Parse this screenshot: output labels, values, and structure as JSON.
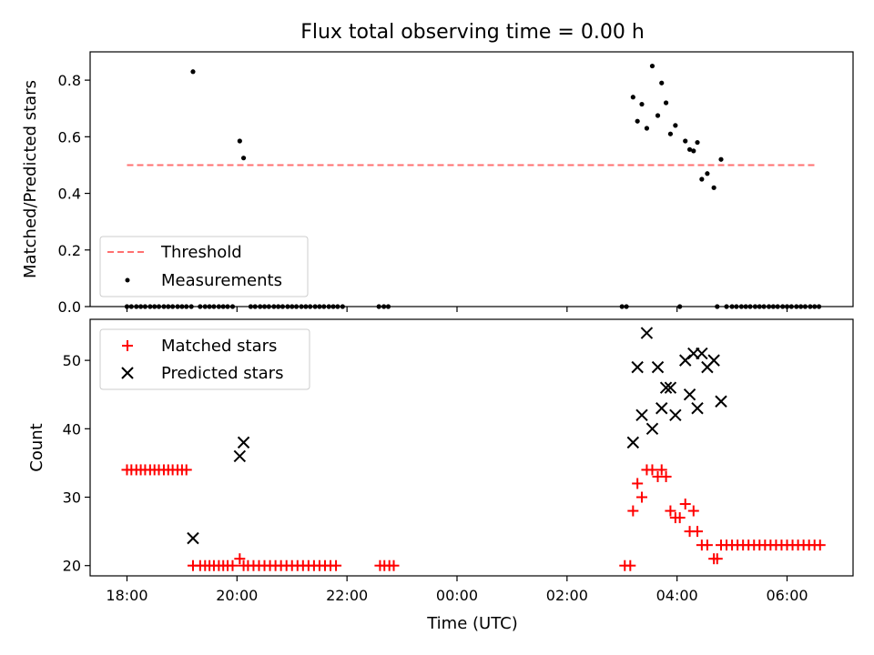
{
  "figure_title": "Flux total observing time = 0.00 h",
  "colors": {
    "threshold": "#ff7070",
    "measurements": "#000000",
    "matched": "#ff0000",
    "predicted": "#000000"
  },
  "chart_data": [
    {
      "type": "scatter",
      "title": "Flux total observing time = 0.00 h",
      "xlabel": "",
      "ylabel": "Matched/Predicted stars",
      "xticks": [
        "18:00",
        "20:00",
        "22:00",
        "00:00",
        "02:00",
        "04:00",
        "06:00"
      ],
      "xtick_values": [
        0,
        2,
        4,
        6,
        8,
        10,
        12
      ],
      "yticks": [
        "0.0",
        "0.2",
        "0.4",
        "0.6",
        "0.8"
      ],
      "ylim": [
        0,
        0.9
      ],
      "xlim": [
        -0.67,
        13.2
      ],
      "legend": {
        "placement": "lower-left",
        "entries": [
          "Threshold",
          "Measurements"
        ]
      },
      "threshold": {
        "name": "Threshold",
        "x": [
          0,
          12.5
        ],
        "y": 0.5
      },
      "measurements": {
        "name": "Measurements",
        "points": [
          [
            0.0,
            0
          ],
          [
            0.08,
            0
          ],
          [
            0.17,
            0
          ],
          [
            0.25,
            0
          ],
          [
            0.33,
            0
          ],
          [
            0.42,
            0
          ],
          [
            0.5,
            0
          ],
          [
            0.58,
            0
          ],
          [
            0.67,
            0
          ],
          [
            0.75,
            0
          ],
          [
            0.83,
            0
          ],
          [
            0.92,
            0
          ],
          [
            1.0,
            0
          ],
          [
            1.08,
            0
          ],
          [
            1.17,
            0
          ],
          [
            1.2,
            0.83
          ],
          [
            1.33,
            0
          ],
          [
            1.42,
            0
          ],
          [
            1.5,
            0
          ],
          [
            1.58,
            0
          ],
          [
            1.67,
            0
          ],
          [
            1.75,
            0
          ],
          [
            1.83,
            0
          ],
          [
            1.92,
            0
          ],
          [
            2.05,
            0.585
          ],
          [
            2.12,
            0.525
          ],
          [
            2.25,
            0
          ],
          [
            2.33,
            0
          ],
          [
            2.42,
            0
          ],
          [
            2.5,
            0
          ],
          [
            2.58,
            0
          ],
          [
            2.67,
            0
          ],
          [
            2.75,
            0
          ],
          [
            2.83,
            0
          ],
          [
            2.92,
            0
          ],
          [
            3.0,
            0
          ],
          [
            3.08,
            0
          ],
          [
            3.17,
            0
          ],
          [
            3.25,
            0
          ],
          [
            3.33,
            0
          ],
          [
            3.42,
            0
          ],
          [
            3.5,
            0
          ],
          [
            3.58,
            0
          ],
          [
            3.67,
            0
          ],
          [
            3.75,
            0
          ],
          [
            3.83,
            0
          ],
          [
            3.92,
            0
          ],
          [
            4.58,
            0
          ],
          [
            4.67,
            0
          ],
          [
            4.75,
            0
          ],
          [
            9.0,
            0
          ],
          [
            9.08,
            0
          ],
          [
            9.2,
            0.74
          ],
          [
            9.28,
            0.655
          ],
          [
            9.36,
            0.715
          ],
          [
            9.45,
            0.63
          ],
          [
            9.55,
            0.85
          ],
          [
            9.65,
            0.675
          ],
          [
            9.72,
            0.79
          ],
          [
            9.8,
            0.72
          ],
          [
            9.88,
            0.61
          ],
          [
            9.97,
            0.64
          ],
          [
            10.05,
            0
          ],
          [
            10.15,
            0.585
          ],
          [
            10.23,
            0.555
          ],
          [
            10.3,
            0.55
          ],
          [
            10.37,
            0.58
          ],
          [
            10.45,
            0.45
          ],
          [
            10.55,
            0.47
          ],
          [
            10.67,
            0.42
          ],
          [
            10.73,
            0
          ],
          [
            10.8,
            0.52
          ],
          [
            10.9,
            0
          ],
          [
            11.0,
            0
          ],
          [
            11.08,
            0
          ],
          [
            11.17,
            0
          ],
          [
            11.25,
            0
          ],
          [
            11.33,
            0
          ],
          [
            11.42,
            0
          ],
          [
            11.5,
            0
          ],
          [
            11.58,
            0
          ],
          [
            11.67,
            0
          ],
          [
            11.75,
            0
          ],
          [
            11.83,
            0
          ],
          [
            11.92,
            0
          ],
          [
            12.0,
            0
          ],
          [
            12.08,
            0
          ],
          [
            12.17,
            0
          ],
          [
            12.25,
            0
          ],
          [
            12.33,
            0
          ],
          [
            12.42,
            0
          ],
          [
            12.5,
            0
          ],
          [
            12.58,
            0
          ]
        ]
      }
    },
    {
      "type": "scatter",
      "title": "",
      "xlabel": "Time (UTC)",
      "ylabel": "Count",
      "xticks": [
        "18:00",
        "20:00",
        "22:00",
        "00:00",
        "02:00",
        "04:00",
        "06:00"
      ],
      "xtick_values": [
        0,
        2,
        4,
        6,
        8,
        10,
        12
      ],
      "yticks": [
        "20",
        "30",
        "40",
        "50"
      ],
      "ylim": [
        18.5,
        56
      ],
      "xlim": [
        -0.67,
        13.2
      ],
      "legend": {
        "placement": "upper-left",
        "entries": [
          "Matched stars",
          "Predicted stars"
        ]
      },
      "series": [
        {
          "name": "Matched stars",
          "marker": "plus",
          "points": [
            [
              0.0,
              34
            ],
            [
              0.08,
              34
            ],
            [
              0.17,
              34
            ],
            [
              0.25,
              34
            ],
            [
              0.33,
              34
            ],
            [
              0.42,
              34
            ],
            [
              0.5,
              34
            ],
            [
              0.58,
              34
            ],
            [
              0.67,
              34
            ],
            [
              0.75,
              34
            ],
            [
              0.83,
              34
            ],
            [
              0.92,
              34
            ],
            [
              1.0,
              34
            ],
            [
              1.08,
              34
            ],
            [
              1.2,
              20
            ],
            [
              1.33,
              20
            ],
            [
              1.42,
              20
            ],
            [
              1.5,
              20
            ],
            [
              1.58,
              20
            ],
            [
              1.67,
              20
            ],
            [
              1.75,
              20
            ],
            [
              1.83,
              20
            ],
            [
              1.92,
              20
            ],
            [
              2.05,
              21
            ],
            [
              2.12,
              20
            ],
            [
              2.2,
              20
            ],
            [
              2.3,
              20
            ],
            [
              2.4,
              20
            ],
            [
              2.5,
              20
            ],
            [
              2.6,
              20
            ],
            [
              2.7,
              20
            ],
            [
              2.8,
              20
            ],
            [
              2.9,
              20
            ],
            [
              3.0,
              20
            ],
            [
              3.1,
              20
            ],
            [
              3.2,
              20
            ],
            [
              3.3,
              20
            ],
            [
              3.4,
              20
            ],
            [
              3.5,
              20
            ],
            [
              3.6,
              20
            ],
            [
              3.7,
              20
            ],
            [
              3.8,
              20
            ],
            [
              4.6,
              20
            ],
            [
              4.68,
              20
            ],
            [
              4.77,
              20
            ],
            [
              4.85,
              20
            ],
            [
              9.05,
              20
            ],
            [
              9.15,
              20
            ],
            [
              9.2,
              28
            ],
            [
              9.28,
              32
            ],
            [
              9.36,
              30
            ],
            [
              9.45,
              34
            ],
            [
              9.55,
              34
            ],
            [
              9.65,
              33
            ],
            [
              9.72,
              34
            ],
            [
              9.8,
              33
            ],
            [
              9.88,
              28
            ],
            [
              9.97,
              27
            ],
            [
              10.05,
              27
            ],
            [
              10.15,
              29
            ],
            [
              10.23,
              25
            ],
            [
              10.3,
              28
            ],
            [
              10.37,
              25
            ],
            [
              10.45,
              23
            ],
            [
              10.55,
              23
            ],
            [
              10.67,
              21
            ],
            [
              10.73,
              21
            ],
            [
              10.8,
              23
            ],
            [
              10.9,
              23
            ],
            [
              11.0,
              23
            ],
            [
              11.1,
              23
            ],
            [
              11.2,
              23
            ],
            [
              11.3,
              23
            ],
            [
              11.4,
              23
            ],
            [
              11.5,
              23
            ],
            [
              11.6,
              23
            ],
            [
              11.7,
              23
            ],
            [
              11.8,
              23
            ],
            [
              11.9,
              23
            ],
            [
              12.0,
              23
            ],
            [
              12.1,
              23
            ],
            [
              12.2,
              23
            ],
            [
              12.3,
              23
            ],
            [
              12.4,
              23
            ],
            [
              12.5,
              23
            ],
            [
              12.6,
              23
            ]
          ]
        },
        {
          "name": "Predicted stars",
          "marker": "x",
          "points": [
            [
              1.2,
              24
            ],
            [
              2.05,
              36
            ],
            [
              2.12,
              38
            ],
            [
              9.2,
              38
            ],
            [
              9.28,
              49
            ],
            [
              9.36,
              42
            ],
            [
              9.45,
              54
            ],
            [
              9.55,
              40
            ],
            [
              9.65,
              49
            ],
            [
              9.72,
              43
            ],
            [
              9.8,
              46
            ],
            [
              9.88,
              46
            ],
            [
              9.97,
              42
            ],
            [
              10.15,
              50
            ],
            [
              10.23,
              45
            ],
            [
              10.3,
              51
            ],
            [
              10.37,
              43
            ],
            [
              10.45,
              51
            ],
            [
              10.55,
              49
            ],
            [
              10.67,
              50
            ],
            [
              10.8,
              44
            ]
          ]
        }
      ]
    }
  ]
}
